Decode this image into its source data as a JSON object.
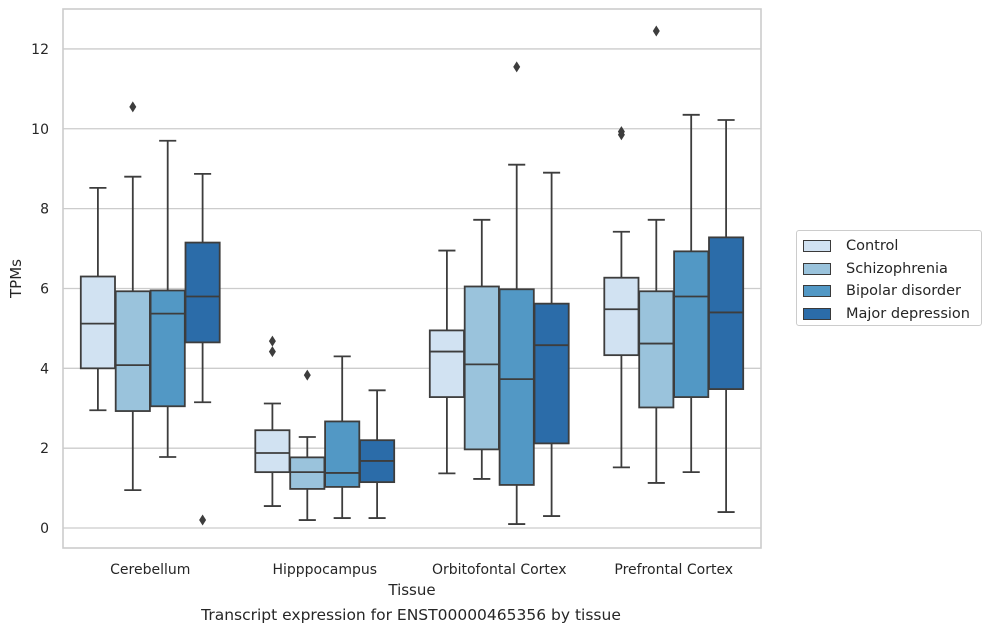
{
  "chart_data": {
    "type": "box",
    "caption": "Transcript expression for ENST00000465356 by tissue",
    "xlabel": "Tissue",
    "ylabel": "TPMs",
    "ylim": [
      -0.5,
      13
    ],
    "yticks": [
      0,
      2,
      4,
      6,
      8,
      10,
      12
    ],
    "grid": true,
    "legend_position": "right-outside",
    "categories": [
      "Cerebellum",
      "Hipppocampus",
      "Orbitofontal Cortex",
      "Prefrontal Cortex"
    ],
    "series": [
      {
        "name": "Control",
        "color": "#d1e2f2",
        "boxes": [
          {
            "whisker_low": 2.95,
            "q1": 4.0,
            "median": 5.12,
            "q3": 6.3,
            "whisker_high": 8.52,
            "outliers": []
          },
          {
            "whisker_low": 0.55,
            "q1": 1.4,
            "median": 1.88,
            "q3": 2.45,
            "whisker_high": 3.12,
            "outliers": [
              4.42,
              4.68
            ]
          },
          {
            "whisker_low": 1.37,
            "q1": 3.28,
            "median": 4.42,
            "q3": 4.95,
            "whisker_high": 6.95,
            "outliers": []
          },
          {
            "whisker_low": 1.52,
            "q1": 4.33,
            "median": 5.48,
            "q3": 6.27,
            "whisker_high": 7.42,
            "outliers": [
              9.85,
              9.93
            ]
          }
        ]
      },
      {
        "name": "Schizophrenia",
        "color": "#9ac3dc",
        "boxes": [
          {
            "whisker_low": 0.95,
            "q1": 2.93,
            "median": 4.08,
            "q3": 5.93,
            "whisker_high": 8.8,
            "outliers": [
              10.55
            ]
          },
          {
            "whisker_low": 0.2,
            "q1": 0.98,
            "median": 1.4,
            "q3": 1.77,
            "whisker_high": 2.28,
            "outliers": [
              3.83
            ]
          },
          {
            "whisker_low": 1.23,
            "q1": 1.97,
            "median": 4.1,
            "q3": 6.05,
            "whisker_high": 7.72,
            "outliers": []
          },
          {
            "whisker_low": 1.13,
            "q1": 3.02,
            "median": 4.62,
            "q3": 5.93,
            "whisker_high": 7.72,
            "outliers": [
              12.45
            ]
          }
        ]
      },
      {
        "name": "Bipolar disorder",
        "color": "#5298c5",
        "boxes": [
          {
            "whisker_low": 1.78,
            "q1": 3.05,
            "median": 5.37,
            "q3": 5.95,
            "whisker_high": 9.7,
            "outliers": []
          },
          {
            "whisker_low": 0.25,
            "q1": 1.03,
            "median": 1.38,
            "q3": 2.67,
            "whisker_high": 4.3,
            "outliers": []
          },
          {
            "whisker_low": 0.1,
            "q1": 1.08,
            "median": 3.73,
            "q3": 5.98,
            "whisker_high": 9.1,
            "outliers": [
              11.55
            ]
          },
          {
            "whisker_low": 1.4,
            "q1": 3.28,
            "median": 5.8,
            "q3": 6.93,
            "whisker_high": 10.35,
            "outliers": []
          }
        ]
      },
      {
        "name": "Major depression",
        "color": "#2b6ca9",
        "boxes": [
          {
            "whisker_low": 3.15,
            "q1": 4.65,
            "median": 5.8,
            "q3": 7.15,
            "whisker_high": 8.87,
            "outliers": [
              0.2
            ]
          },
          {
            "whisker_low": 0.25,
            "q1": 1.15,
            "median": 1.68,
            "q3": 2.2,
            "whisker_high": 3.45,
            "outliers": []
          },
          {
            "whisker_low": 0.3,
            "q1": 2.12,
            "median": 4.58,
            "q3": 5.62,
            "whisker_high": 8.9,
            "outliers": []
          },
          {
            "whisker_low": 0.4,
            "q1": 3.48,
            "median": 5.4,
            "q3": 7.28,
            "whisker_high": 10.22,
            "outliers": []
          }
        ]
      }
    ]
  }
}
